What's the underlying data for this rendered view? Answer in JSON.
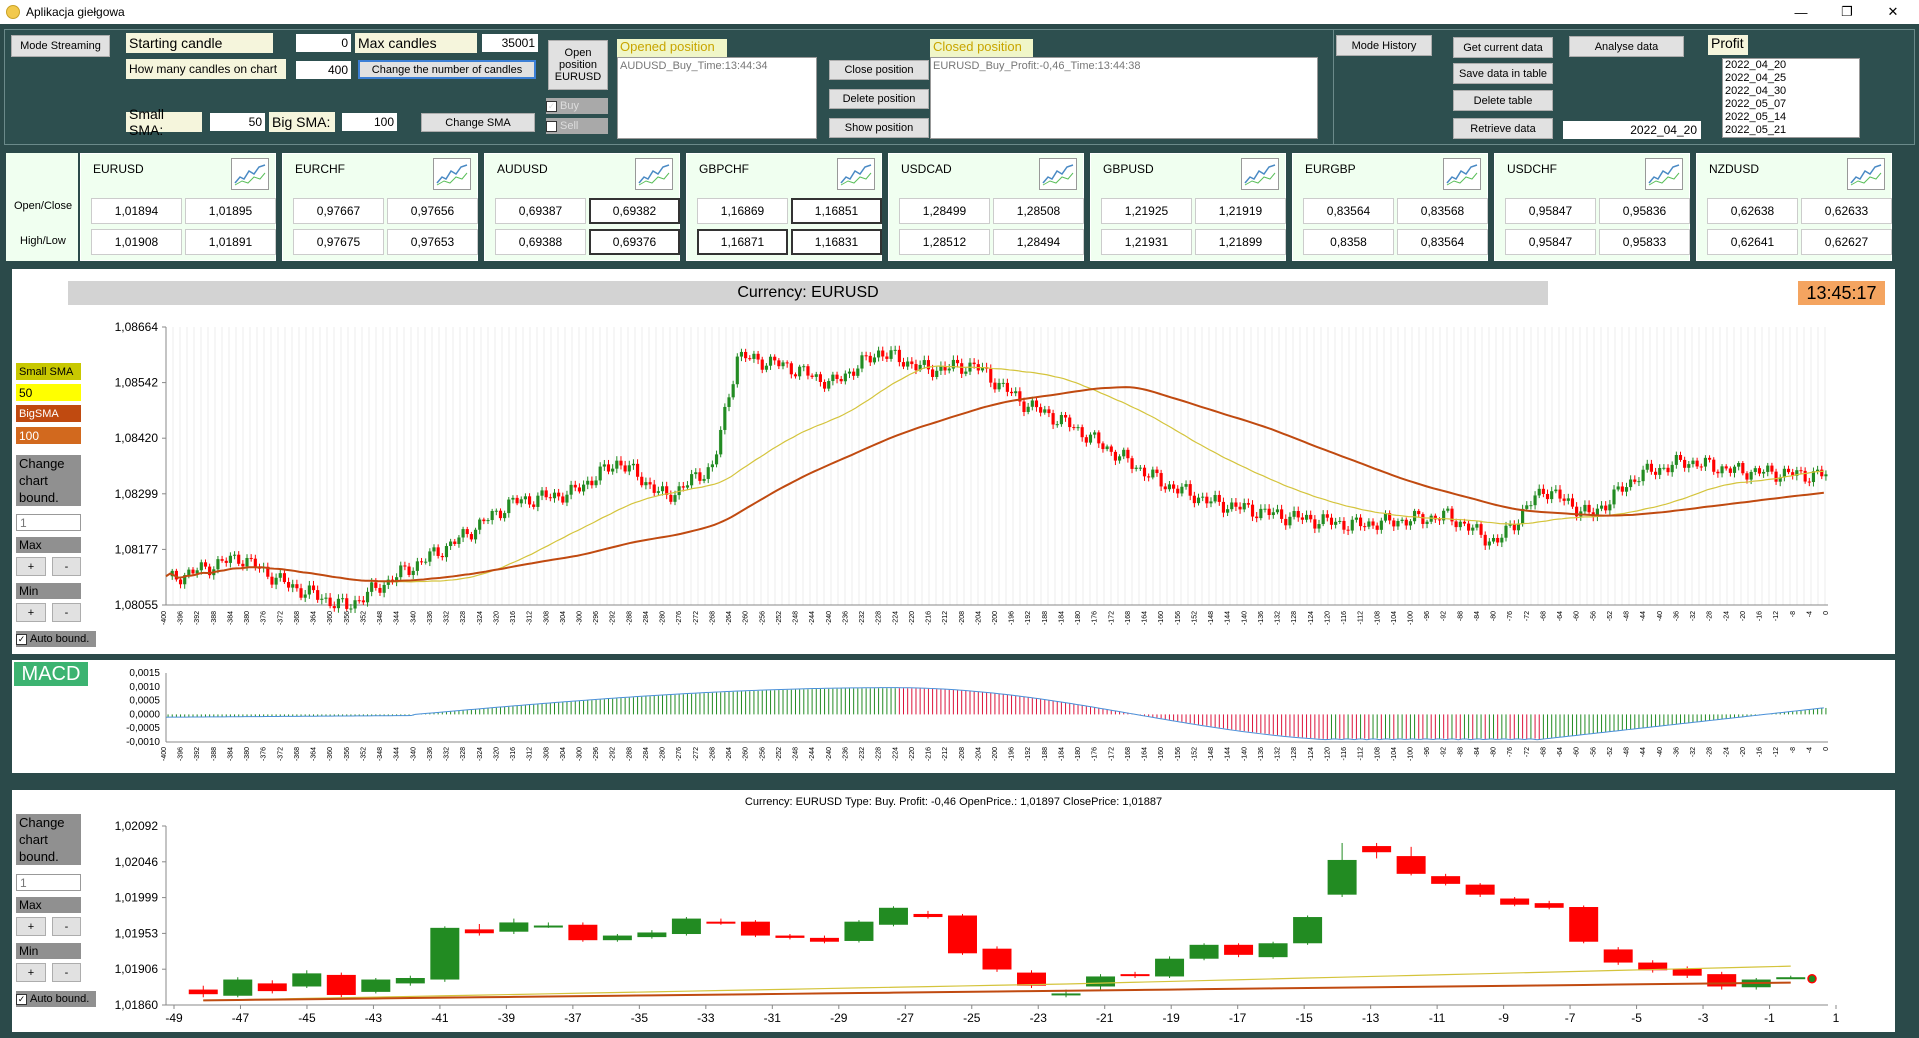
{
  "window": {
    "title": "Aplikacja giełgowa",
    "minimize": "—",
    "restore": "❐",
    "close": "✕"
  },
  "controls": {
    "mode_streaming": "Mode Streaming",
    "starting_candle_label": "Starting candle",
    "starting_candle_value": "0",
    "max_candles_label": "Max candles",
    "max_candles_value": "35001",
    "how_many_label": "How many candles on chart",
    "how_many_value": "400",
    "change_number_btn": "Change the number of candles",
    "small_sma_label": "Small SMA:",
    "small_sma_value": "50",
    "big_sma_label": "Big SMA:",
    "big_sma_value": "100",
    "change_sma_btn": "Change SMA",
    "open_position_btn": "Open position EURUSD",
    "buy_label": "Buy",
    "sell_label": "Sell",
    "opened_position_title": "Opened position",
    "opened_position_item": "AUDUSD_Buy_Time:13:44:34",
    "close_position_btn": "Close position",
    "delete_position_btn": "Delete position",
    "show_position_btn": "Show position",
    "closed_position_title": "Closed position",
    "closed_position_item": "EURUSD_Buy_Profit:-0,46_Time:13:44:38",
    "mode_history_btn": "Mode History",
    "get_current_btn": "Get current data",
    "save_data_btn": "Save data in table",
    "delete_table_btn": "Delete table",
    "retrieve_btn": "Retrieve data",
    "analyse_btn": "Analyse data",
    "date_value": "2022_04_20",
    "profit_title": "Profit",
    "profit_items": [
      "2022_04_20",
      "2022_04_25",
      "2022_04_30",
      "2022_05_07",
      "2022_05_14",
      "2022_05_21"
    ]
  },
  "quotes_labels": {
    "open_close": "Open/Close",
    "high_low": "High/Low"
  },
  "quotes": [
    {
      "name": "EURUSD",
      "open": "1,01894",
      "close": "1,01895",
      "high": "1,01908",
      "low": "1,01891"
    },
    {
      "name": "EURCHF",
      "open": "0,97667",
      "close": "0,97656",
      "high": "0,97675",
      "low": "0,97653"
    },
    {
      "name": "AUDUSD",
      "open": "0,69387",
      "close": "0,69382",
      "high": "0,69388",
      "low": "0,69376"
    },
    {
      "name": "GBPCHF",
      "open": "1,16869",
      "close": "1,16851",
      "high": "1,16871",
      "low": "1,16831"
    },
    {
      "name": "USDCAD",
      "open": "1,28499",
      "close": "1,28508",
      "high": "1,28512",
      "low": "1,28494"
    },
    {
      "name": "GBPUSD",
      "open": "1,21925",
      "close": "1,21919",
      "high": "1,21931",
      "low": "1,21899"
    },
    {
      "name": "EURGBP",
      "open": "0,83564",
      "close": "0,83568",
      "high": "0,8358",
      "low": "0,83564"
    },
    {
      "name": "USDCHF",
      "open": "0,95847",
      "close": "0,95836",
      "high": "0,95847",
      "low": "0,95833"
    },
    {
      "name": "NZDUSD",
      "open": "0,62638",
      "close": "0,62633",
      "high": "0,62641",
      "low": "0,62627"
    }
  ],
  "main_chart": {
    "title": "Currency: EURUSD",
    "clock": "13:45:17",
    "small_sma_label": "Small SMA",
    "small_sma_value": "50",
    "big_sma_label": "BigSMA",
    "big_sma_value": "100",
    "change_bound": "Change chart bound.",
    "bound_value": "1",
    "max_label": "Max",
    "min_label": "Min",
    "plus": "+",
    "minus": "-",
    "auto_bound": "Auto bound.",
    "colors": {
      "up": "#228b22",
      "down": "#ff0000",
      "small_sma": "#d4c43c",
      "big_sma": "#c04a10",
      "clock_bg": "#f4a460"
    }
  },
  "macd": {
    "label": "MACD"
  },
  "bottom_chart": {
    "title": "Currency: EURUSD Type: Buy. Profit: -0,46 OpenPrice.: 1,01897 ClosePrice: 1,01887",
    "change_bound": "Change chart bound.",
    "bound_value": "1",
    "max_label": "Max",
    "min_label": "Min",
    "plus": "+",
    "minus": "-",
    "auto_bound": "Auto bound."
  },
  "chart_data": [
    {
      "type": "candlestick",
      "title": "Currency: EURUSD",
      "ylim": [
        1.08055,
        1.08664
      ],
      "yticks": [
        "1,08664",
        "1,08542",
        "1,08420",
        "1,08299",
        "1,08177",
        "1,08055"
      ],
      "x_range": [
        -400,
        0
      ],
      "series": [
        {
          "name": "Small SMA",
          "value": 50
        },
        {
          "name": "BigSMA",
          "value": 100
        }
      ]
    },
    {
      "type": "bar",
      "title": "MACD",
      "ylim": [
        -0.001,
        0.0015
      ],
      "yticks": [
        "0,0015",
        "0,0010",
        "0,0005",
        "0,0000",
        "-0,0005",
        "-0,0010"
      ]
    },
    {
      "type": "candlestick",
      "title": "Currency: EURUSD Type: Buy. Profit: -0,46 OpenPrice.: 1,01897 ClosePrice: 1,01887",
      "ylim": [
        1.0186,
        1.02092
      ],
      "yticks": [
        "1,02092",
        "1,02046",
        "1,01999",
        "1,01953",
        "1,01906",
        "1,01860"
      ],
      "xticks": [
        "-49",
        "-47",
        "-45",
        "-43",
        "-41",
        "-39",
        "-37",
        "-35",
        "-33",
        "-31",
        "-29",
        "-27",
        "-25",
        "-23",
        "-21",
        "-19",
        "-17",
        "-15",
        "-13",
        "-11",
        "-9",
        "-7",
        "-5",
        "-3",
        "-1",
        "1"
      ],
      "candles": [
        [
          1.0188,
          1.01874,
          1.01885,
          1.0187
        ],
        [
          1.01872,
          1.01893,
          1.01896,
          1.0187
        ],
        [
          1.01888,
          1.01878,
          1.01892,
          1.01875
        ],
        [
          1.01884,
          1.01901,
          1.01905,
          1.01882
        ],
        [
          1.01899,
          1.01873,
          1.01902,
          1.0187
        ],
        [
          1.01877,
          1.01893,
          1.01895,
          1.01875
        ],
        [
          1.01888,
          1.01895,
          1.01898,
          1.01885
        ],
        [
          1.01893,
          1.0196,
          1.01962,
          1.0189
        ],
        [
          1.01958,
          1.01953,
          1.01965,
          1.0195
        ],
        [
          1.01955,
          1.01967,
          1.01972,
          1.01952
        ],
        [
          1.01963,
          1.01963,
          1.01967,
          1.0196
        ],
        [
          1.01964,
          1.01944,
          1.01967,
          1.01942
        ],
        [
          1.01944,
          1.0195,
          1.01952,
          1.01942
        ],
        [
          1.01948,
          1.01954,
          1.01957,
          1.01946
        ],
        [
          1.01952,
          1.01972,
          1.01974,
          1.0195
        ],
        [
          1.01968,
          1.01966,
          1.01972,
          1.01964
        ],
        [
          1.01968,
          1.0195,
          1.0197,
          1.01948
        ],
        [
          1.0195,
          1.01947,
          1.01952,
          1.01945
        ],
        [
          1.01947,
          1.01942,
          1.0195,
          1.0194
        ],
        [
          1.01943,
          1.01968,
          1.0197,
          1.01941
        ],
        [
          1.01964,
          1.01986,
          1.01988,
          1.01962
        ],
        [
          1.01978,
          1.01974,
          1.01982,
          1.01972
        ],
        [
          1.01976,
          1.01927,
          1.01978,
          1.01925
        ],
        [
          1.01933,
          1.01906,
          1.01936,
          1.01903
        ],
        [
          1.01902,
          1.01885,
          1.01905,
          1.01882
        ],
        [
          1.01874,
          1.01875,
          1.0188,
          1.0187
        ],
        [
          1.01884,
          1.01897,
          1.019,
          1.0188
        ],
        [
          1.019,
          1.01898,
          1.01903,
          1.01895
        ],
        [
          1.01897,
          1.0192,
          1.01923,
          1.01895
        ],
        [
          1.0192,
          1.01938,
          1.0194,
          1.01918
        ],
        [
          1.01938,
          1.01925,
          1.0194,
          1.01922
        ],
        [
          1.01922,
          1.0194,
          1.01942,
          1.0192
        ],
        [
          1.0194,
          1.01974,
          1.01976,
          1.01938
        ],
        [
          1.02003,
          1.02048,
          1.0207,
          1.02
        ],
        [
          1.02066,
          1.02058,
          1.0207,
          1.0205
        ],
        [
          1.02053,
          1.0203,
          1.02065,
          1.02028
        ],
        [
          1.02027,
          1.02017,
          1.0203,
          1.02015
        ],
        [
          1.02016,
          1.02003,
          1.02018,
          1.02
        ],
        [
          1.01998,
          1.0199,
          1.02,
          1.01988
        ],
        [
          1.01992,
          1.01986,
          1.01995,
          1.01984
        ],
        [
          1.01987,
          1.01942,
          1.01989,
          1.0194
        ],
        [
          1.01932,
          1.01915,
          1.01935,
          1.01912
        ],
        [
          1.01915,
          1.01905,
          1.01918,
          1.01902
        ],
        [
          1.01907,
          1.01898,
          1.0191,
          1.01895
        ],
        [
          1.019,
          1.01884,
          1.01903,
          1.0188
        ],
        [
          1.01883,
          1.01893,
          1.01895,
          1.0188
        ],
        [
          1.01896,
          1.01896,
          1.01898,
          1.01894
        ]
      ]
    }
  ]
}
